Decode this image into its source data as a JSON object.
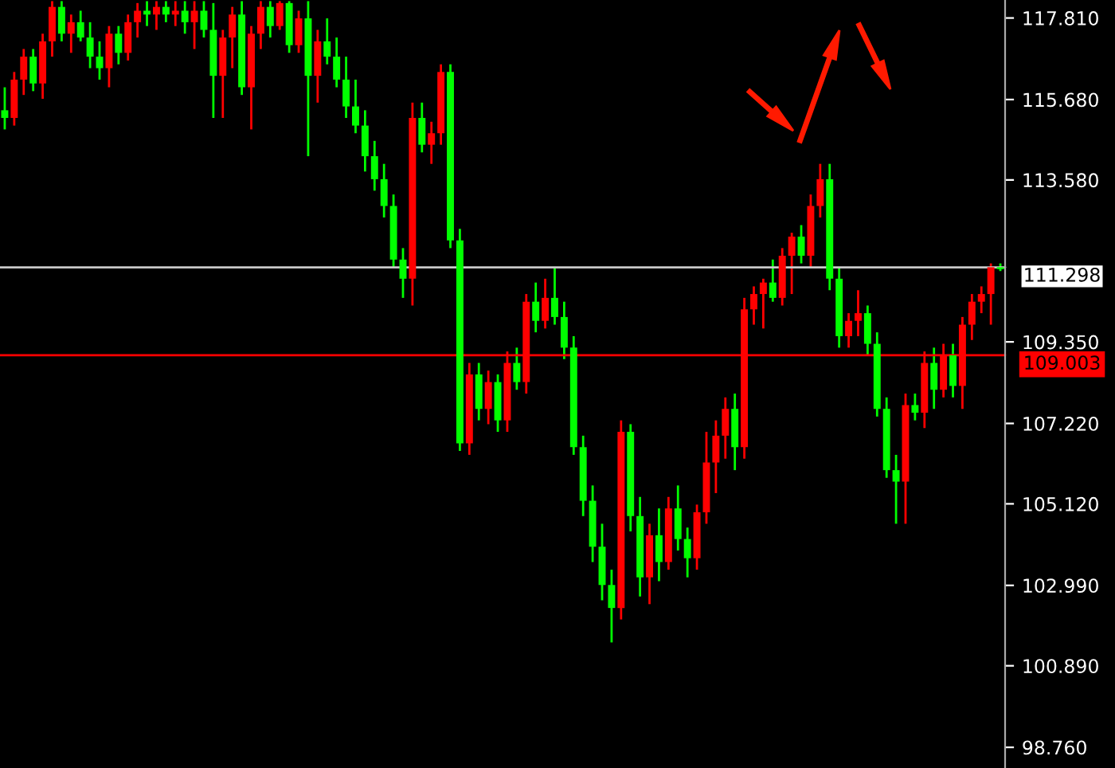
{
  "chart_data": {
    "type": "candlestick",
    "categories": [
      null,
      null,
      null,
      null,
      null,
      null,
      null,
      null,
      null,
      null,
      null,
      null,
      null,
      null,
      null,
      null,
      null,
      null,
      null,
      null,
      null,
      null,
      null,
      null,
      null,
      null,
      null,
      null,
      null,
      null,
      null,
      null,
      null,
      null,
      null,
      null,
      null,
      null,
      null,
      null,
      null,
      null,
      null,
      null,
      null,
      null,
      null,
      null,
      null,
      null,
      null,
      null,
      null,
      null,
      null,
      null,
      null,
      null,
      null,
      null,
      null,
      null,
      null,
      null,
      null,
      null,
      null,
      null,
      null,
      null,
      null,
      null,
      null,
      null,
      null,
      null,
      null,
      null,
      null,
      null,
      null,
      null,
      null,
      null,
      null,
      null,
      null,
      null,
      null,
      null,
      null,
      null,
      null,
      null,
      null,
      null,
      null,
      null,
      null,
      null,
      null,
      null,
      null,
      null,
      null,
      null
    ],
    "ohlc": [
      [
        115.4,
        116.0,
        114.9,
        115.2
      ],
      [
        115.2,
        116.4,
        115.0,
        116.2
      ],
      [
        116.2,
        117.0,
        115.8,
        116.8
      ],
      [
        116.8,
        117.0,
        115.9,
        116.1
      ],
      [
        116.1,
        117.4,
        115.7,
        117.2
      ],
      [
        117.2,
        118.25,
        116.8,
        118.1
      ],
      [
        118.1,
        118.25,
        117.2,
        117.4
      ],
      [
        117.4,
        117.9,
        116.9,
        117.7
      ],
      [
        117.7,
        118.0,
        117.2,
        117.3
      ],
      [
        117.3,
        117.7,
        116.5,
        116.8
      ],
      [
        116.8,
        117.2,
        116.2,
        116.5
      ],
      [
        116.5,
        117.6,
        116.0,
        117.4
      ],
      [
        117.4,
        117.6,
        116.6,
        116.9
      ],
      [
        116.9,
        117.9,
        116.7,
        117.7
      ],
      [
        117.7,
        118.2,
        117.3,
        118.0
      ],
      [
        118.0,
        118.25,
        117.6,
        117.9
      ],
      [
        117.9,
        118.25,
        117.5,
        118.1
      ],
      [
        118.1,
        118.25,
        117.7,
        117.9
      ],
      [
        117.9,
        118.25,
        117.6,
        118.0
      ],
      [
        118.0,
        118.25,
        117.4,
        117.7
      ],
      [
        117.7,
        118.25,
        117.0,
        118.0
      ],
      [
        118.0,
        118.25,
        117.3,
        117.5
      ],
      [
        117.5,
        118.2,
        115.2,
        116.3
      ],
      [
        116.3,
        117.5,
        115.2,
        117.3
      ],
      [
        117.3,
        118.1,
        116.5,
        117.9
      ],
      [
        117.9,
        118.25,
        115.8,
        116.0
      ],
      [
        116.0,
        117.6,
        114.9,
        117.4
      ],
      [
        117.4,
        118.25,
        117.0,
        118.1
      ],
      [
        118.1,
        118.25,
        117.3,
        117.6
      ],
      [
        117.6,
        118.25,
        117.5,
        118.2
      ],
      [
        118.2,
        118.25,
        116.9,
        117.1
      ],
      [
        117.1,
        118.0,
        116.9,
        117.8
      ],
      [
        117.8,
        118.25,
        114.2,
        116.3
      ],
      [
        116.3,
        117.5,
        115.6,
        117.2
      ],
      [
        117.2,
        117.8,
        116.6,
        116.8
      ],
      [
        116.8,
        117.3,
        116.0,
        116.2
      ],
      [
        116.2,
        116.8,
        115.2,
        115.5
      ],
      [
        115.5,
        116.2,
        114.8,
        115.0
      ],
      [
        115.0,
        115.4,
        113.8,
        114.2
      ],
      [
        114.2,
        114.6,
        113.3,
        113.6
      ],
      [
        113.6,
        114.0,
        112.6,
        112.9
      ],
      [
        112.9,
        113.2,
        111.3,
        111.5
      ],
      [
        111.5,
        111.8,
        110.5,
        111.0
      ],
      [
        111.0,
        115.6,
        110.3,
        115.2
      ],
      [
        115.2,
        115.6,
        114.3,
        114.5
      ],
      [
        114.5,
        115.1,
        114.0,
        114.8
      ],
      [
        114.8,
        116.6,
        114.5,
        116.4
      ],
      [
        116.4,
        116.6,
        111.8,
        112.0
      ],
      [
        112.0,
        112.3,
        106.5,
        106.7
      ],
      [
        106.7,
        108.8,
        106.4,
        108.5
      ],
      [
        108.5,
        108.8,
        107.3,
        107.6
      ],
      [
        107.6,
        108.6,
        107.2,
        108.3
      ],
      [
        108.3,
        108.5,
        107.0,
        107.3
      ],
      [
        107.3,
        109.1,
        107.0,
        108.8
      ],
      [
        108.8,
        109.2,
        108.1,
        108.3
      ],
      [
        108.3,
        110.6,
        108.0,
        110.4
      ],
      [
        110.4,
        110.9,
        109.6,
        109.9
      ],
      [
        109.9,
        111.0,
        109.7,
        110.5
      ],
      [
        110.5,
        111.3,
        109.8,
        110.0
      ],
      [
        110.0,
        110.4,
        108.9,
        109.2
      ],
      [
        109.2,
        109.5,
        106.4,
        106.6
      ],
      [
        106.6,
        106.9,
        104.8,
        105.2
      ],
      [
        105.2,
        105.6,
        103.6,
        104.0
      ],
      [
        104.0,
        104.6,
        102.6,
        103.0
      ],
      [
        103.0,
        103.4,
        101.5,
        102.4
      ],
      [
        102.4,
        107.3,
        102.1,
        107.0
      ],
      [
        107.0,
        107.2,
        104.4,
        104.8
      ],
      [
        104.8,
        105.3,
        102.7,
        103.2
      ],
      [
        103.2,
        104.6,
        102.5,
        104.3
      ],
      [
        104.3,
        105.0,
        103.1,
        103.6
      ],
      [
        103.6,
        105.3,
        103.4,
        105.0
      ],
      [
        105.0,
        105.6,
        103.9,
        104.2
      ],
      [
        104.2,
        104.5,
        103.2,
        103.7
      ],
      [
        103.7,
        105.1,
        103.4,
        104.9
      ],
      [
        104.9,
        107.0,
        104.6,
        106.2
      ],
      [
        106.2,
        107.3,
        105.4,
        106.9
      ],
      [
        106.9,
        107.9,
        106.3,
        107.6
      ],
      [
        107.6,
        108.0,
        106.0,
        106.6
      ],
      [
        106.6,
        110.5,
        106.3,
        110.2
      ],
      [
        110.2,
        110.8,
        109.8,
        110.6
      ],
      [
        110.6,
        111.0,
        109.7,
        110.9
      ],
      [
        110.9,
        111.5,
        110.4,
        110.5
      ],
      [
        110.5,
        111.8,
        110.3,
        111.6
      ],
      [
        111.6,
        112.2,
        110.6,
        112.1
      ],
      [
        112.1,
        112.4,
        111.4,
        111.6
      ],
      [
        111.6,
        113.2,
        111.3,
        112.9
      ],
      [
        112.9,
        114.0,
        112.6,
        113.6
      ],
      [
        113.6,
        114.0,
        110.7,
        111.0
      ],
      [
        111.0,
        111.3,
        109.2,
        109.5
      ],
      [
        109.5,
        110.1,
        109.2,
        109.9
      ],
      [
        109.9,
        110.7,
        109.5,
        110.1
      ],
      [
        110.1,
        110.3,
        109.0,
        109.3
      ],
      [
        109.3,
        109.6,
        107.4,
        107.6
      ],
      [
        107.6,
        107.9,
        105.8,
        106.0
      ],
      [
        106.0,
        106.4,
        104.6,
        105.7
      ],
      [
        105.7,
        108.0,
        104.6,
        107.7
      ],
      [
        107.7,
        108.0,
        107.3,
        107.5
      ],
      [
        107.5,
        109.1,
        107.1,
        108.8
      ],
      [
        108.8,
        109.2,
        107.6,
        108.1
      ],
      [
        108.1,
        109.3,
        107.9,
        109.0
      ],
      [
        109.0,
        109.3,
        107.9,
        108.2
      ],
      [
        108.2,
        110.0,
        107.6,
        109.8
      ],
      [
        109.8,
        110.6,
        109.4,
        110.4
      ],
      [
        110.4,
        110.8,
        110.1,
        110.6
      ],
      [
        110.6,
        111.4,
        109.8,
        111.3
      ],
      [
        111.3,
        111.4,
        111.2,
        111.25
      ]
    ],
    "colors": [
      "#00ff00",
      "#ff0000",
      "#ff0000",
      "#00ff00",
      "#ff0000",
      "#ff0000",
      "#00ff00",
      "#ff0000",
      "#00ff00",
      "#00ff00",
      "#00ff00",
      "#ff0000",
      "#00ff00",
      "#ff0000",
      "#ff0000",
      "#00ff00",
      "#ff0000",
      "#00ff00",
      "#ff0000",
      "#00ff00",
      "#ff0000",
      "#00ff00",
      "#00ff00",
      "#ff0000",
      "#ff0000",
      "#00ff00",
      "#ff0000",
      "#ff0000",
      "#00ff00",
      "#ff0000",
      "#00ff00",
      "#ff0000",
      "#00ff00",
      "#ff0000",
      "#00ff00",
      "#00ff00",
      "#00ff00",
      "#00ff00",
      "#00ff00",
      "#00ff00",
      "#00ff00",
      "#00ff00",
      "#00ff00",
      "#ff0000",
      "#00ff00",
      "#ff0000",
      "#ff0000",
      "#00ff00",
      "#00ff00",
      "#ff0000",
      "#00ff00",
      "#ff0000",
      "#00ff00",
      "#ff0000",
      "#00ff00",
      "#ff0000",
      "#00ff00",
      "#ff0000",
      "#00ff00",
      "#00ff00",
      "#00ff00",
      "#00ff00",
      "#00ff00",
      "#00ff00",
      "#00ff00",
      "#ff0000",
      "#00ff00",
      "#00ff00",
      "#ff0000",
      "#00ff00",
      "#ff0000",
      "#00ff00",
      "#00ff00",
      "#ff0000",
      "#ff0000",
      "#ff0000",
      "#ff0000",
      "#00ff00",
      "#ff0000",
      "#ff0000",
      "#ff0000",
      "#00ff00",
      "#ff0000",
      "#ff0000",
      "#00ff00",
      "#ff0000",
      "#ff0000",
      "#00ff00",
      "#00ff00",
      "#ff0000",
      "#ff0000",
      "#00ff00",
      "#00ff00",
      "#00ff00",
      "#00ff00",
      "#ff0000",
      "#00ff00",
      "#ff0000",
      "#00ff00",
      "#ff0000",
      "#00ff00",
      "#ff0000",
      "#ff0000",
      "#ff0000",
      "#ff0000",
      "#00ff00"
    ],
    "ylim": [
      98.22,
      118.28
    ],
    "yticks": [
      {
        "value": 98.76,
        "label": "98.760"
      },
      {
        "value": 100.89,
        "label": "100.890"
      },
      {
        "value": 102.99,
        "label": "102.990"
      },
      {
        "value": 105.12,
        "label": "105.120"
      },
      {
        "value": 107.22,
        "label": "107.220"
      },
      {
        "value": 109.35,
        "label": "109.350"
      },
      {
        "value": 113.58,
        "label": "113.580"
      },
      {
        "value": 115.68,
        "label": "115.680"
      },
      {
        "value": 117.81,
        "label": "117.810"
      }
    ],
    "ref_lines": [
      {
        "axis": "y",
        "value": 111.298,
        "label": "111.298",
        "color": "#c8c8c8"
      },
      {
        "axis": "y",
        "value": 109.003,
        "label": "109.003",
        "color": "#ff0000"
      }
    ],
    "tick_labels": "y",
    "grid": false
  }
}
